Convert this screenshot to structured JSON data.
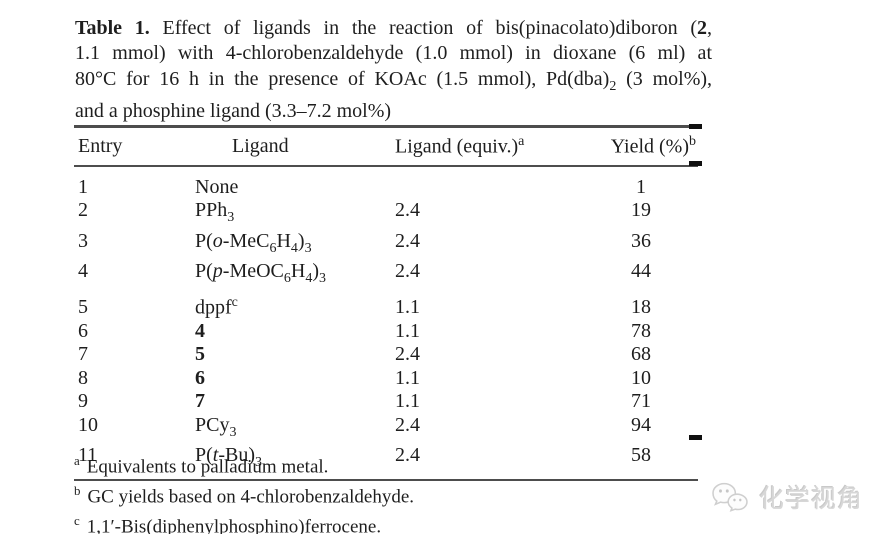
{
  "page": {
    "background": "#ffffff",
    "text_color": "#1e1e1e",
    "rule_color": "#4d4d4d"
  },
  "caption": {
    "lines": [
      "<b>Table 1.</b> Effect of ligands in the reaction of bis(pinacolato)diboron (<b>2</b>,",
      "1.1 mmol) with 4-chlorobenzaldehyde (1.0 mmol) in dioxane (6 ml) at",
      "80°C for 16 h in the presence of KOAc (1.5 mmol), Pd(dba)<sub>2</sub> (3 mol%),",
      "and a phosphine ligand (3.3–7.2 mol%)"
    ]
  },
  "table": {
    "columns": [
      {
        "key": "entry",
        "label_html": "Entry"
      },
      {
        "key": "ligand",
        "label_html": "Ligand"
      },
      {
        "key": "equiv",
        "label_html": "Ligand (equiv.)<sup>a</sup>"
      },
      {
        "key": "yield",
        "label_html": "Yield (%)<sup>b</sup>"
      }
    ],
    "rows": [
      {
        "entry": "1",
        "ligand_html": "None",
        "equiv": "",
        "yield": "1"
      },
      {
        "entry": "2",
        "ligand_html": "PPh<sub>3</sub>",
        "equiv": "2.4",
        "yield": "19"
      },
      {
        "entry": "3",
        "ligand_html": "P(<i>o</i>-MeC<sub>6</sub>H<sub>4</sub>)<sub>3</sub>",
        "equiv": "2.4",
        "yield": "36"
      },
      {
        "entry": "4",
        "ligand_html": "P(<i>p</i>-MeOC<sub>6</sub>H<sub>4</sub>)<sub>3</sub>",
        "equiv": "2.4",
        "yield": "44"
      },
      {
        "entry": "5",
        "ligand_html": "dppf<sup>c</sup>",
        "equiv": "1.1",
        "yield": "18"
      },
      {
        "entry": "6",
        "ligand_html": "<b>4</b>",
        "equiv": "1.1",
        "yield": "78"
      },
      {
        "entry": "7",
        "ligand_html": "<b>5</b>",
        "equiv": "2.4",
        "yield": "68"
      },
      {
        "entry": "8",
        "ligand_html": "<b>6</b>",
        "equiv": "1.1",
        "yield": "10"
      },
      {
        "entry": "9",
        "ligand_html": "<b>7</b>",
        "equiv": "1.1",
        "yield": "71"
      },
      {
        "entry": "10",
        "ligand_html": "PCy<sub>3</sub>",
        "equiv": "2.4",
        "yield": "94"
      },
      {
        "entry": "11",
        "ligand_html": "P(<i>t</i>-Bu)<sub>3</sub>",
        "equiv": "2.4",
        "yield": "58"
      }
    ]
  },
  "footnotes": [
    {
      "marker": "a",
      "text": "Equivalents to palladium metal."
    },
    {
      "marker": "b",
      "text": "GC yields based on 4-chlorobenzaldehyde."
    },
    {
      "marker": "c",
      "text": "1,1′-Bis(diphenylphosphino)ferrocene."
    }
  ],
  "watermark": {
    "icon": "wechat-icon",
    "text": "化学视角",
    "color": "#d7d7d7"
  }
}
